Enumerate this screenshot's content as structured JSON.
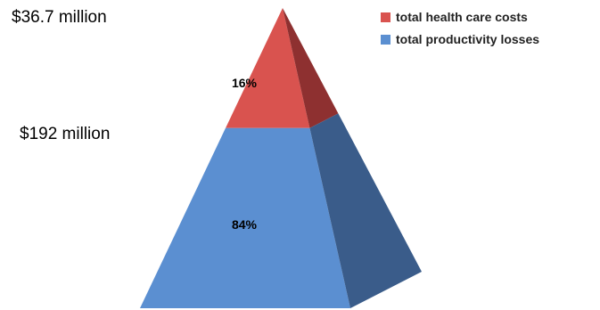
{
  "chart_data": {
    "type": "pyramid",
    "series": [
      {
        "name": "total health care costs",
        "value_label": "$36.7 million",
        "percent_label": "16%",
        "percent": 16,
        "color": "#d9534f",
        "side_color": "#8e3030"
      },
      {
        "name": "total productivity losses",
        "value_label": "$192 million",
        "percent_label": "84%",
        "percent": 84,
        "color": "#5b8fd1",
        "side_color": "#3a5c8a"
      }
    ],
    "legend_position": "top-right"
  }
}
